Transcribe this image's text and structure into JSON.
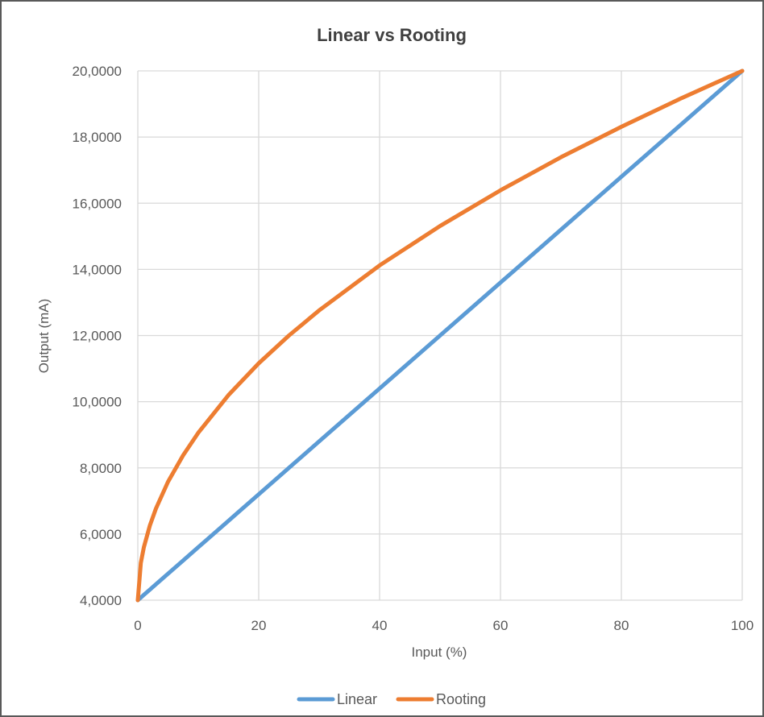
{
  "chart_data": {
    "type": "line",
    "title": "Linear vs Rooting",
    "xlabel": "Input (%)",
    "ylabel": "Output (mA)",
    "xlim": [
      0,
      100
    ],
    "ylim": [
      4,
      20
    ],
    "x_ticks": [
      0,
      20,
      40,
      60,
      80,
      100
    ],
    "x_tick_labels": [
      "0",
      "20",
      "40",
      "60",
      "80",
      "100"
    ],
    "y_ticks": [
      4,
      6,
      8,
      10,
      12,
      14,
      16,
      18,
      20
    ],
    "y_tick_labels": [
      "4,0000",
      "6,0000",
      "8,0000",
      "10,0000",
      "12,0000",
      "14,0000",
      "16,0000",
      "18,0000",
      "20,0000"
    ],
    "grid": true,
    "legend_position": "bottom",
    "x": [
      0,
      0.5,
      1,
      2,
      3,
      5,
      7.5,
      10,
      15,
      20,
      25,
      30,
      40,
      50,
      60,
      70,
      80,
      90,
      100
    ],
    "series": [
      {
        "name": "Linear",
        "color": "#5b9bd5",
        "values": [
          4.0,
          4.08,
          4.16,
          4.32,
          4.48,
          4.8,
          5.2,
          5.6,
          6.4,
          7.2,
          8.0,
          8.8,
          10.4,
          12.0,
          13.6,
          15.2,
          16.8,
          18.4,
          20.0
        ]
      },
      {
        "name": "Rooting",
        "color": "#ed7d31",
        "values": [
          4.0,
          5.13,
          5.6,
          6.26,
          6.77,
          7.58,
          8.38,
          9.06,
          10.2,
          11.16,
          12.0,
          12.76,
          14.12,
          15.31,
          16.39,
          17.39,
          18.31,
          19.18,
          20.0
        ]
      }
    ]
  }
}
